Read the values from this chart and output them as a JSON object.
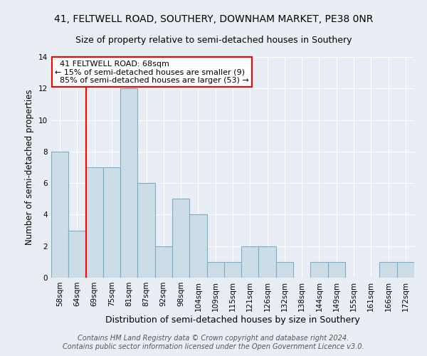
{
  "title1": "41, FELTWELL ROAD, SOUTHERY, DOWNHAM MARKET, PE38 0NR",
  "title2": "Size of property relative to semi-detached houses in Southery",
  "xlabel": "Distribution of semi-detached houses by size in Southery",
  "ylabel": "Number of semi-detached properties",
  "categories": [
    "58sqm",
    "64sqm",
    "69sqm",
    "75sqm",
    "81sqm",
    "87sqm",
    "92sqm",
    "98sqm",
    "104sqm",
    "109sqm",
    "115sqm",
    "121sqm",
    "126sqm",
    "132sqm",
    "138sqm",
    "144sqm",
    "149sqm",
    "155sqm",
    "161sqm",
    "166sqm",
    "172sqm"
  ],
  "values": [
    8,
    3,
    7,
    7,
    12,
    6,
    2,
    5,
    4,
    1,
    1,
    2,
    2,
    1,
    0,
    1,
    1,
    0,
    0,
    1,
    1
  ],
  "bar_color": "#ccdde8",
  "bar_edge_color": "#7aaec8",
  "annotation_text": "  41 FELTWELL ROAD: 68sqm\n← 15% of semi-detached houses are smaller (9)\n  85% of semi-detached houses are larger (53) →",
  "annotation_box_color": "white",
  "annotation_box_edge_color": "red",
  "ylim": [
    0,
    14
  ],
  "yticks": [
    0,
    2,
    4,
    6,
    8,
    10,
    12,
    14
  ],
  "footer1": "Contains HM Land Registry data © Crown copyright and database right 2024.",
  "footer2": "Contains public sector information licensed under the Open Government Licence v3.0.",
  "background_color": "#e8eef4",
  "grid_color": "#ffffff",
  "title1_fontsize": 10,
  "title2_fontsize": 9,
  "xlabel_fontsize": 9,
  "ylabel_fontsize": 8.5,
  "tick_fontsize": 7.5,
  "annotation_fontsize": 8,
  "footer_fontsize": 7
}
